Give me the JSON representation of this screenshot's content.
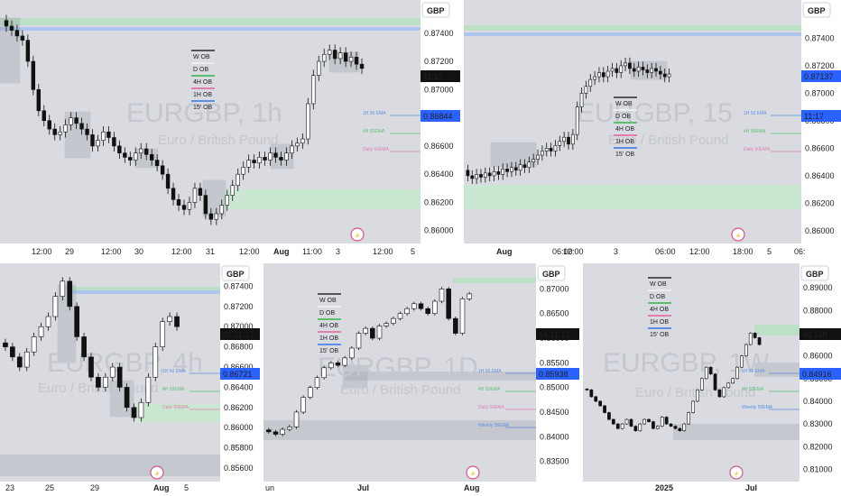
{
  "chart_data": [
    {
      "type": "candlestick",
      "watermark": {
        "symbol": "EURGBP, 1h",
        "name": "Euro / British Pound"
      },
      "currency": "GBP",
      "y_ticks": [
        "0.87400",
        "0.87200",
        "0.87000",
        "0.86800",
        "0.86600",
        "0.86400",
        "0.86200",
        "0.86000"
      ],
      "x_ticks": [
        "12:00",
        "29",
        "12:00",
        "30",
        "12:00",
        "31",
        "12:00",
        "Aug",
        "11:00",
        "3",
        "12:00",
        "5"
      ],
      "price_labels": [
        {
          "text": "11:17",
          "bg": "#111111"
        },
        {
          "text": "0.86844",
          "bg": "#2962ff"
        }
      ],
      "legend": [
        "W OB",
        "D OB",
        "4H OB",
        "1H OB",
        "15' OB"
      ],
      "annotations": [
        "1H 50 EMA",
        "4H 50EMA",
        "Daily 50EMA"
      ],
      "ylim": [
        0.8596,
        0.8752
      ],
      "close_path": [
        0.8745,
        0.8742,
        0.8738,
        0.8735,
        0.872,
        0.87,
        0.8685,
        0.8678,
        0.8672,
        0.8668,
        0.867,
        0.8675,
        0.868,
        0.8676,
        0.8672,
        0.8668,
        0.866,
        0.8664,
        0.867,
        0.8666,
        0.866,
        0.8655,
        0.8652,
        0.865,
        0.8655,
        0.8658,
        0.8654,
        0.865,
        0.8646,
        0.864,
        0.863,
        0.8622,
        0.8618,
        0.8615,
        0.862,
        0.863,
        0.8625,
        0.8612,
        0.8608,
        0.8612,
        0.8618,
        0.8625,
        0.8632,
        0.864,
        0.8645,
        0.865,
        0.8648,
        0.8652,
        0.865,
        0.8655,
        0.8652,
        0.865,
        0.8655,
        0.866,
        0.8662,
        0.8665,
        0.869,
        0.871,
        0.872,
        0.8725,
        0.8728,
        0.8722,
        0.8726,
        0.872,
        0.8723,
        0.8718,
        0.8715
      ]
    },
    {
      "type": "candlestick",
      "watermark": {
        "symbol": "EURGBP, 15",
        "name": "Euro / British Pound"
      },
      "currency": "GBP",
      "y_ticks": [
        "0.87400",
        "0.87200",
        "0.87000",
        "0.86800",
        "0.86600",
        "0.86400",
        "0.86200",
        "0.86000"
      ],
      "x_ticks": [
        "Aug",
        "06:00",
        "12:00",
        "3",
        "06:00",
        "12:00",
        "18:00",
        "5",
        "06:"
      ],
      "price_labels": [
        {
          "text": "0.87137",
          "bg": "#2962ff"
        },
        {
          "text": "11:17",
          "bg": "#2962ff"
        }
      ],
      "legend": [
        "W OB",
        "D OB",
        "4H OB",
        "1H OB",
        "15' OB"
      ],
      "annotations": [
        "1H 50 EMA",
        "4H 50EMA",
        "Daily 50EMA"
      ],
      "ylim": [
        0.8596,
        0.8756
      ],
      "close_path": [
        0.864,
        0.8638,
        0.8641,
        0.8639,
        0.8642,
        0.864,
        0.8643,
        0.8641,
        0.8645,
        0.8643,
        0.8646,
        0.8644,
        0.8648,
        0.8646,
        0.865,
        0.8652,
        0.8655,
        0.8658,
        0.866,
        0.8658,
        0.8662,
        0.8665,
        0.8668,
        0.8663,
        0.867,
        0.869,
        0.87,
        0.8705,
        0.871,
        0.8712,
        0.8715,
        0.8712,
        0.8716,
        0.8718,
        0.8715,
        0.872,
        0.8722,
        0.8718,
        0.8716,
        0.8719,
        0.8717,
        0.8715,
        0.8718,
        0.8716,
        0.8714,
        0.8712,
        0.8714
      ]
    },
    {
      "type": "candlestick",
      "watermark": {
        "symbol": "EURGBP, 4h",
        "name": "Euro / British Pound"
      },
      "currency": "GBP",
      "y_ticks": [
        "0.87400",
        "0.87200",
        "0.87000",
        "0.86800",
        "0.86600",
        "0.86400",
        "0.86200",
        "0.86000",
        "0.85800",
        "0.85600"
      ],
      "x_ticks": [
        "23",
        "25",
        "29",
        "Aug",
        "5"
      ],
      "price_labels": [
        {
          "text": "02:11:17",
          "bg": "#111111"
        },
        {
          "text": "0.86721",
          "bg": "#2962ff"
        }
      ],
      "annotations": [
        "1H 50 EMA",
        "4H 50EMA",
        "Daily 50EMA"
      ],
      "ylim": [
        0.8552,
        0.8752
      ],
      "close_path": [
        0.868,
        0.867,
        0.866,
        0.8675,
        0.869,
        0.87,
        0.871,
        0.873,
        0.8745,
        0.872,
        0.869,
        0.867,
        0.865,
        0.864,
        0.865,
        0.866,
        0.864,
        0.862,
        0.861,
        0.8625,
        0.865,
        0.868,
        0.8705,
        0.871,
        0.87
      ]
    },
    {
      "type": "candlestick",
      "watermark": {
        "symbol": "EURGBP, 1D",
        "name": "Euro / British Pound"
      },
      "currency": "GBP",
      "y_ticks": [
        "0.87000",
        "0.86500",
        "0.86000",
        "0.85500",
        "0.85000",
        "0.84500",
        "0.84000",
        "0.83500"
      ],
      "x_ticks": [
        "un",
        "Jul",
        "Aug"
      ],
      "price_labels": [
        {
          "text": "14:11:17",
          "bg": "#111111"
        },
        {
          "text": "0.85938",
          "bg": "#2962ff"
        }
      ],
      "legend": [
        "W OB",
        "D OB",
        "4H OB",
        "1H OB",
        "15' OB"
      ],
      "annotations": [
        "1H 50 EMA",
        "4H 50EMA",
        "Daily 50EMA",
        "Weekly 50EMA"
      ],
      "ylim": [
        0.832,
        0.873
      ],
      "close_path": [
        0.841,
        0.8405,
        0.8415,
        0.842,
        0.845,
        0.848,
        0.85,
        0.852,
        0.854,
        0.855,
        0.8545,
        0.856,
        0.858,
        0.861,
        0.862,
        0.86,
        0.8625,
        0.863,
        0.864,
        0.865,
        0.866,
        0.867,
        0.866,
        0.865,
        0.8675,
        0.87,
        0.864,
        0.861,
        0.868,
        0.869
      ]
    },
    {
      "type": "candlestick",
      "watermark": {
        "symbol": "EURGBP, 1W",
        "name": "Euro / British Pound"
      },
      "currency": "GBP",
      "y_ticks": [
        "0.89000",
        "0.88000",
        "0.87000",
        "0.86000",
        "0.85000",
        "0.84000",
        "0.83000",
        "0.82000",
        "0.81000"
      ],
      "x_ticks": [
        "2025",
        "Jul"
      ],
      "price_labels": [
        {
          "text": "4d 15h",
          "bg": "#111111"
        },
        {
          "text": "0.84916",
          "bg": "#2962ff"
        }
      ],
      "legend": [
        "W OB",
        "D OB",
        "4H OB",
        "1H OB",
        "15' OB"
      ],
      "annotations": [
        "1H 50 EMA",
        "4H 50EMA",
        "Weekly 50EMA"
      ],
      "ylim": [
        0.807,
        0.896
      ],
      "close_path": [
        0.845,
        0.842,
        0.84,
        0.838,
        0.835,
        0.832,
        0.83,
        0.828,
        0.83,
        0.832,
        0.829,
        0.827,
        0.83,
        0.832,
        0.831,
        0.828,
        0.829,
        0.833,
        0.83,
        0.829,
        0.828,
        0.827,
        0.83,
        0.835,
        0.84,
        0.845,
        0.85,
        0.855,
        0.852,
        0.845,
        0.842,
        0.846,
        0.848,
        0.85,
        0.855,
        0.86,
        0.865,
        0.87,
        0.868,
        0.865
      ]
    }
  ]
}
